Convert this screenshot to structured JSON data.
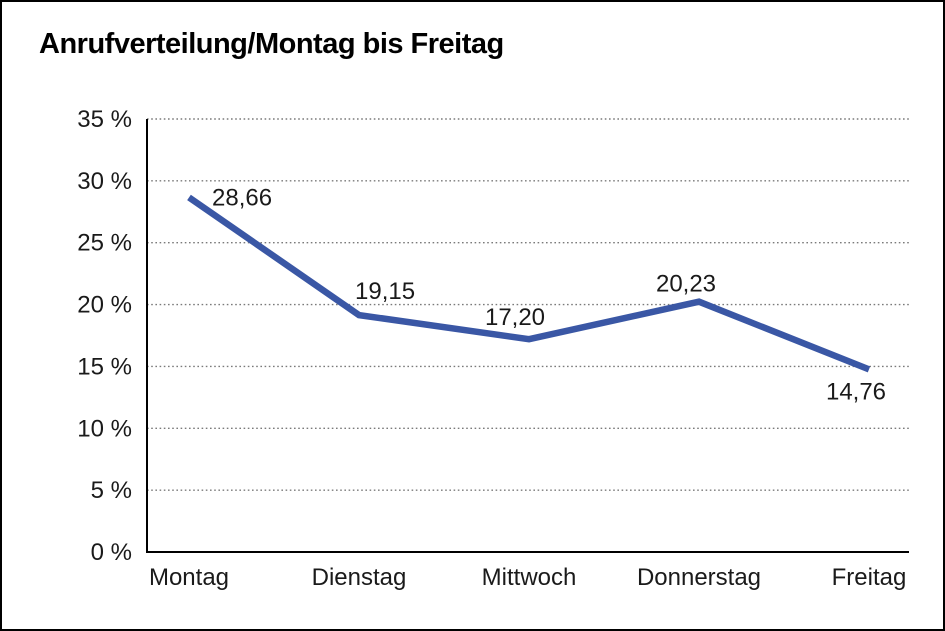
{
  "window": {
    "background": "#ffffff",
    "border_color": "#000000"
  },
  "chart_data": {
    "type": "line",
    "title": "Anrufverteilung/Montag bis Freitag",
    "categories": [
      "Montag",
      "Dienstag",
      "Mittwoch",
      "Donnerstag",
      "Freitag"
    ],
    "values": [
      28.66,
      19.15,
      17.2,
      20.23,
      14.76
    ],
    "value_labels": [
      "28,66",
      "19,15",
      "17,20",
      "20,23",
      "14,76"
    ],
    "xlabel": "",
    "ylabel": "",
    "ylim": [
      0,
      35
    ],
    "y_tick_step": 5,
    "y_ticks": [
      {
        "value": 35,
        "label": "35 %"
      },
      {
        "value": 30,
        "label": "30 %"
      },
      {
        "value": 25,
        "label": "25 %"
      },
      {
        "value": 20,
        "label": "20 %"
      },
      {
        "value": 15,
        "label": "15 %"
      },
      {
        "value": 10,
        "label": "10 %"
      },
      {
        "value": 5,
        "label": "5 %"
      },
      {
        "value": 0,
        "label": "0 %"
      }
    ],
    "grid": "horizontal-dotted",
    "legend": "none",
    "colors": {
      "line": "#3A57A5",
      "axis": "#000000",
      "gridline": "#7a7a7a",
      "text": "#1a1a1a"
    }
  }
}
